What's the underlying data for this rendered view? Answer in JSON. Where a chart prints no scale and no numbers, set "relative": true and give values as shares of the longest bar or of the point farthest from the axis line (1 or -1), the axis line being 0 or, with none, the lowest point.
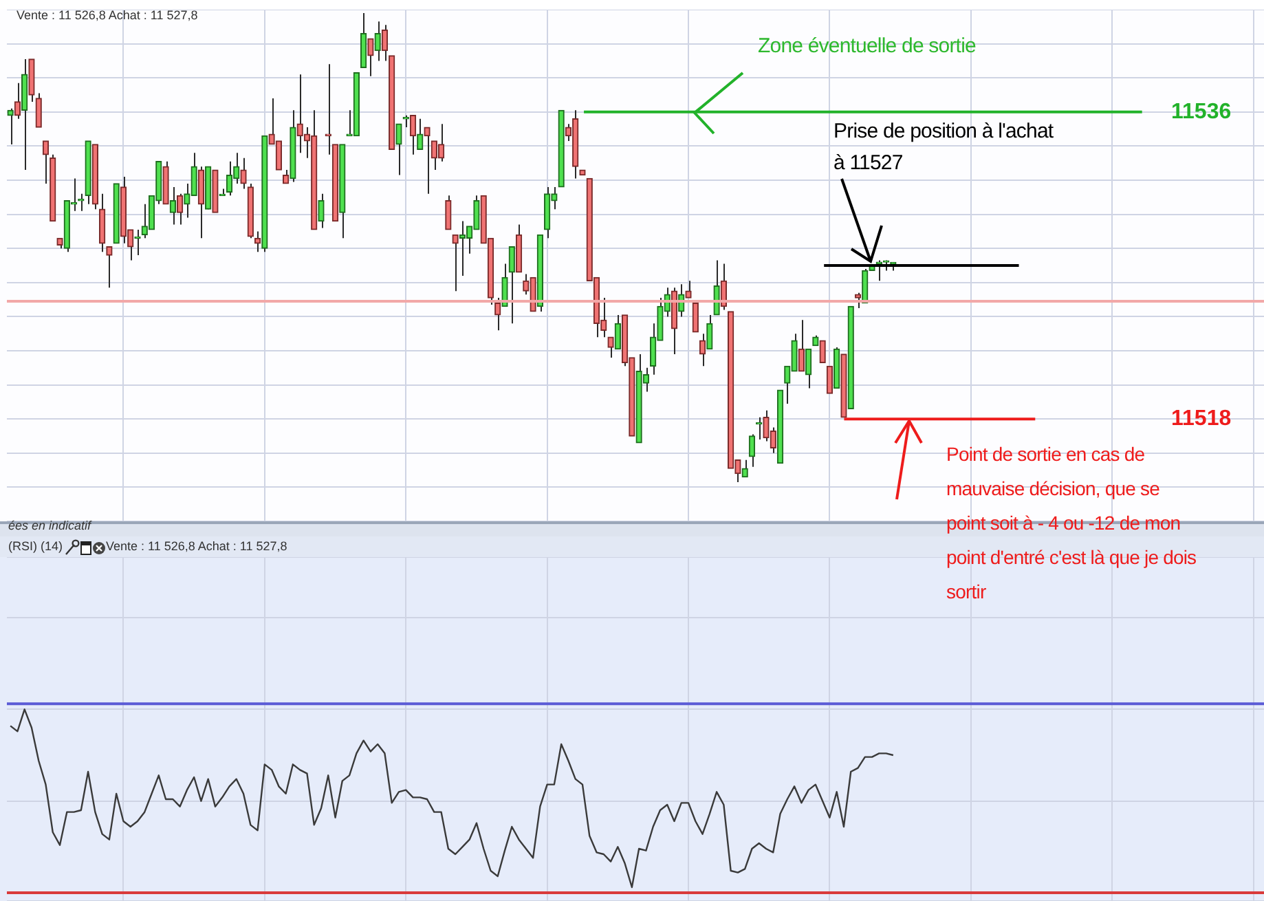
{
  "chart_data": [
    {
      "type": "candlestick",
      "categories": [
        null,
        null,
        null,
        null,
        null,
        null,
        null,
        null,
        null,
        null,
        null,
        null,
        null,
        null,
        null,
        null,
        null,
        null,
        null,
        null,
        null,
        null,
        null,
        null,
        null,
        null,
        null,
        null,
        null,
        null,
        null,
        null,
        null,
        null,
        null,
        null,
        null,
        null,
        null,
        null,
        null,
        null,
        null,
        null,
        null,
        null,
        null,
        null,
        null,
        null,
        null,
        null,
        null,
        null,
        null,
        null,
        null,
        null,
        null,
        null,
        null,
        null,
        null,
        null,
        null,
        null,
        null,
        null,
        null,
        null,
        null,
        null,
        null,
        null,
        null,
        null,
        null,
        null,
        null,
        null,
        null,
        null,
        null,
        null,
        null,
        null,
        null,
        null,
        null,
        null,
        null,
        null,
        null,
        null,
        null,
        null,
        null,
        null,
        null,
        null,
        null,
        null,
        null,
        null,
        null,
        null,
        null,
        null,
        null,
        null,
        null,
        null,
        null,
        null,
        null,
        null,
        null,
        null,
        null,
        null,
        null,
        null,
        null,
        null,
        null,
        null,
        null,
        null,
        null,
        null,
        null,
        null,
        null,
        null,
        null,
        null,
        null,
        null,
        null,
        null,
        null,
        null,
        null,
        null,
        null,
        null,
        null,
        null,
        null,
        null,
        null,
        null,
        null,
        null,
        null,
        null,
        null,
        null,
        null,
        null,
        null,
        null,
        null,
        null,
        null,
        null,
        null,
        null,
        null,
        null,
        null,
        null,
        null,
        null,
        null,
        null,
        null,
        null
      ],
      "ohlc": [
        [
          11535.8,
          11536.2,
          11534.1,
          11536.1
        ],
        [
          11536.6,
          11537.7,
          11535.6,
          11535.8
        ],
        [
          11536.1,
          11539.1,
          11532.6,
          11538.2
        ],
        [
          11539.1,
          11539.1,
          11536.6,
          11537.0
        ],
        [
          11536.8,
          11537.1,
          11535.1,
          11535.1
        ],
        [
          11534.3,
          11534.3,
          11531.8,
          11533.5
        ],
        [
          11533.3,
          11533.5,
          11529.6,
          11529.6
        ],
        [
          11528.6,
          11528.6,
          11528.0,
          11528.2
        ],
        [
          11528.0,
          11530.8,
          11527.8,
          11530.8
        ],
        [
          11530.6,
          11532.1,
          11530.2,
          11530.6
        ],
        [
          11530.8,
          11531.2,
          11530.2,
          11530.8
        ],
        [
          11531.1,
          11534.3,
          11530.6,
          11534.3
        ],
        [
          11534.1,
          11534.1,
          11530.3,
          11530.6
        ],
        [
          11530.3,
          11531.2,
          11527.8,
          11528.3
        ],
        [
          11528.1,
          11528.1,
          11525.7,
          11527.6
        ],
        [
          11528.3,
          11531.8,
          11528.3,
          11531.8
        ],
        [
          11531.6,
          11532.2,
          11528.3,
          11528.7
        ],
        [
          11529.1,
          11529.1,
          11527.3,
          11528.1
        ],
        [
          11528.6,
          11529.1,
          11527.6,
          11528.6
        ],
        [
          11528.8,
          11530.6,
          11528.6,
          11529.3
        ],
        [
          11529.1,
          11531.1,
          11529.1,
          11531.1
        ],
        [
          11530.8,
          11533.1,
          11530.6,
          11533.1
        ],
        [
          11532.8,
          11533.1,
          11530.6,
          11530.6
        ],
        [
          11530.1,
          11531.6,
          11529.4,
          11530.8
        ],
        [
          11531.1,
          11531.2,
          11529.4,
          11530.1
        ],
        [
          11530.6,
          11531.8,
          11529.8,
          11531.2
        ],
        [
          11531.1,
          11533.6,
          11531.1,
          11532.8
        ],
        [
          11532.6,
          11532.8,
          11528.6,
          11530.6
        ],
        [
          11530.3,
          11532.8,
          11530.3,
          11532.8
        ],
        [
          11532.6,
          11532.6,
          11530.1,
          11530.1
        ],
        [
          11531.1,
          11531.5,
          11531.1,
          11531.1
        ],
        [
          11531.3,
          11533.1,
          11531.1,
          11532.3
        ],
        [
          11532.1,
          11533.6,
          11531.8,
          11532.8
        ],
        [
          11532.6,
          11533.3,
          11531.5,
          11531.8
        ],
        [
          11531.6,
          11531.8,
          11528.6,
          11528.7
        ],
        [
          11528.6,
          11529.0,
          11527.8,
          11528.3
        ],
        [
          11528.0,
          11534.6,
          11527.8,
          11534.6
        ],
        [
          11534.7,
          11536.8,
          11534.1,
          11534.1
        ],
        [
          11534.3,
          11534.3,
          11532.6,
          11532.6
        ],
        [
          11532.3,
          11532.6,
          11531.8,
          11531.8
        ],
        [
          11532.1,
          11536.1,
          11531.9,
          11535.1
        ],
        [
          11535.3,
          11538.2,
          11533.6,
          11534.6
        ],
        [
          11534.7,
          11535.1,
          11533.3,
          11534.3
        ],
        [
          11534.6,
          11536.1,
          11529.1,
          11529.1
        ],
        [
          11529.6,
          11531.2,
          11529.2,
          11530.8
        ],
        [
          11534.7,
          11538.8,
          11533.5,
          11534.6
        ],
        [
          11534.1,
          11534.1,
          11529.6,
          11529.6
        ],
        [
          11530.1,
          11534.1,
          11528.6,
          11534.1
        ],
        [
          11534.6,
          11536.1,
          11534.6,
          11534.7
        ],
        [
          11534.6,
          11538.3,
          11534.6,
          11538.3
        ],
        [
          11538.6,
          11541.8,
          11538.6,
          11540.6
        ],
        [
          11540.3,
          11540.3,
          11538.1,
          11539.3
        ],
        [
          11539.6,
          11541.3,
          11539.0,
          11540.6
        ],
        [
          11540.8,
          11541.1,
          11539.0,
          11539.6
        ],
        [
          11539.3,
          11539.3,
          11533.8,
          11533.8
        ],
        [
          11534.1,
          11535.3,
          11532.3,
          11535.3
        ],
        [
          11535.6,
          11535.8,
          11535.1,
          11535.6
        ],
        [
          11535.8,
          11535.8,
          11533.5,
          11534.6
        ],
        [
          11533.8,
          11535.6,
          11533.8,
          11534.7
        ],
        [
          11535.1,
          11535.1,
          11531.2,
          11534.6
        ],
        [
          11534.3,
          11534.3,
          11532.6,
          11533.3
        ],
        [
          11534.1,
          11535.3,
          11533.1,
          11533.3
        ],
        [
          11530.8,
          11531.1,
          11529.1,
          11529.1
        ],
        [
          11528.8,
          11528.8,
          11525.5,
          11528.3
        ],
        [
          11528.6,
          11529.6,
          11526.4,
          11528.8
        ],
        [
          11528.6,
          11529.3,
          11527.7,
          11529.3
        ],
        [
          11529.1,
          11531.1,
          11529.1,
          11530.8
        ],
        [
          11531.1,
          11531.1,
          11528.3,
          11528.3
        ],
        [
          11528.6,
          11528.6,
          11524.7,
          11525.1
        ],
        [
          11524.8,
          11525.1,
          11523.2,
          11524.1
        ],
        [
          11524.6,
          11527.1,
          11524.6,
          11526.3
        ],
        [
          11526.6,
          11528.1,
          11523.6,
          11528.1
        ],
        [
          11528.8,
          11529.4,
          11526.6,
          11526.6
        ],
        [
          11526.1,
          11526.5,
          11525.3,
          11525.5
        ],
        [
          11526.3,
          11526.3,
          11524.3,
          11524.3
        ],
        [
          11524.6,
          11528.8,
          11524.3,
          11528.8
        ],
        [
          11529.1,
          11531.6,
          11528.6,
          11531.2
        ],
        [
          11530.8,
          11531.6,
          11530.3,
          11531.2
        ],
        [
          11531.6,
          11536.1,
          11531.6,
          11536.1
        ],
        [
          11535.1,
          11535.3,
          11534.3,
          11534.6
        ],
        [
          11535.6,
          11536.1,
          11532.1,
          11532.8
        ],
        [
          11532.6,
          11532.6,
          11532.3,
          11532.3
        ],
        [
          11532.1,
          11532.1,
          11526.1,
          11526.1
        ],
        [
          11526.3,
          11526.3,
          11522.8,
          11523.6
        ],
        [
          11523.8,
          11525.1,
          11522.8,
          11523.2
        ],
        [
          11522.8,
          11522.8,
          11521.6,
          11522.2
        ],
        [
          11522.1,
          11524.1,
          11522.1,
          11523.6
        ],
        [
          11524.1,
          11524.1,
          11521.1,
          11521.3
        ],
        [
          11521.6,
          11521.6,
          11517.0,
          11517.0
        ],
        [
          11516.6,
          11521.8,
          11516.6,
          11520.8
        ],
        [
          11520.1,
          11521.0,
          11519.6,
          11520.6
        ],
        [
          11521.1,
          11523.6,
          11520.6,
          11522.8
        ],
        [
          11522.6,
          11525.1,
          11522.6,
          11524.6
        ],
        [
          11524.3,
          11525.7,
          11524.0,
          11525.3
        ],
        [
          11525.5,
          11525.7,
          11521.8,
          11523.3
        ],
        [
          11524.3,
          11525.9,
          11524.0,
          11525.3
        ],
        [
          11525.5,
          11526.1,
          11525.1,
          11525.1
        ],
        [
          11524.8,
          11524.8,
          11523.1,
          11523.1
        ],
        [
          11522.6,
          11523.0,
          11521.1,
          11521.8
        ],
        [
          11522.1,
          11524.1,
          11522.1,
          11523.6
        ],
        [
          11524.1,
          11527.3,
          11524.1,
          11525.8
        ],
        [
          11526.1,
          11527.1,
          11524.4,
          11524.6
        ],
        [
          11524.3,
          11524.3,
          11515.1,
          11515.1
        ],
        [
          11515.6,
          11515.6,
          11514.3,
          11514.8
        ],
        [
          11514.6,
          11515.6,
          11514.6,
          11515.1
        ],
        [
          11515.8,
          11517.1,
          11515.2,
          11517.0
        ],
        [
          11517.7,
          11518.1,
          11516.8,
          11517.7
        ],
        [
          11518.1,
          11518.5,
          11516.7,
          11516.9
        ],
        [
          11517.3,
          11517.5,
          11516.0,
          11516.3
        ],
        [
          11515.4,
          11519.7,
          11515.4,
          11519.7
        ],
        [
          11520.1,
          11521.1,
          11518.9,
          11521.1
        ],
        [
          11520.8,
          11523.0,
          11520.8,
          11522.6
        ],
        [
          11522.1,
          11523.8,
          11520.8,
          11520.8
        ],
        [
          11520.6,
          11522.1,
          11519.8,
          11522.1
        ],
        [
          11522.3,
          11522.9,
          11522.3,
          11522.8
        ],
        [
          11522.6,
          11522.6,
          11521.3,
          11521.3
        ],
        [
          11521.1,
          11521.1,
          11519.5,
          11519.5
        ],
        [
          11519.8,
          11522.2,
          11519.8,
          11522.1
        ],
        [
          11521.8,
          11521.8,
          11518.1,
          11518.1
        ],
        [
          11518.6,
          11524.6,
          11518.6,
          11524.6
        ],
        [
          11525.3,
          11525.4,
          11524.5,
          11525.1
        ],
        [
          11524.8,
          11526.8,
          11524.8,
          11526.7
        ],
        [
          11526.7,
          11527.0,
          11526.7,
          11527.0
        ],
        [
          11527.1,
          11527.3,
          11526.1,
          11527.2
        ],
        [
          11527.2,
          11527.3,
          11526.7,
          11527.2
        ],
        [
          11527.1,
          11527.2,
          11526.7,
          11527.1
        ],
        null,
        null,
        null,
        null,
        null,
        null,
        null,
        null,
        null,
        null,
        null,
        null,
        null,
        null,
        null,
        null,
        null,
        null,
        null,
        null,
        null,
        null,
        null,
        null,
        null,
        null,
        null,
        null,
        null,
        null,
        null,
        null,
        null,
        null,
        null,
        null,
        null,
        null,
        null,
        null,
        null,
        null,
        null,
        null,
        null,
        null,
        null,
        null,
        null,
        null,
        null,
        null
      ],
      "ylim": [
        11512,
        11542
      ],
      "yticks": [
        {
          "value": 11512,
          "label": null
        },
        {
          "value": 11514,
          "label": null
        },
        {
          "value": 11516,
          "label": null
        },
        11518,
        {
          "value": 11520,
          "label": null
        },
        {
          "value": 11522,
          "label": null
        },
        {
          "value": 11524,
          "label": null
        },
        {
          "value": 11526,
          "label": null
        },
        {
          "value": 11528,
          "label": null
        },
        {
          "value": 11530,
          "label": null
        },
        {
          "value": 11532,
          "label": null
        },
        {
          "value": 11534,
          "label": null
        },
        11536,
        {
          "value": 11538,
          "label": null
        },
        {
          "value": 11540,
          "label": null
        },
        {
          "value": 11542,
          "label": null
        }
      ],
      "grid": true,
      "ref_lines": [
        {
          "axis": "y",
          "value": 11524.9,
          "color": "#f2a8a8"
        },
        {
          "axis": "y",
          "value": 11536,
          "color": "#22b22a"
        },
        {
          "axis": "y",
          "value": 11527,
          "color": "#000000"
        },
        {
          "axis": "y",
          "value": 11518,
          "color": "#ee1c1c"
        }
      ],
      "annotations": [
        "Vente : 11 526,8 Achat : 11 527,8",
        "ées en indicatif",
        "Zone éventuelle de sortie",
        "Prise de position à l'achat",
        "à 11527",
        "Point de sortie en cas de mauvaise décision, que se point soit à - 4 ou -12 de mon point d'entré c'est là que je dois sortir"
      ]
    },
    {
      "type": "line",
      "categories": [
        null,
        null,
        null,
        null,
        null,
        null,
        null,
        null,
        null,
        null,
        null,
        null,
        null,
        null,
        null,
        null,
        null,
        null,
        null,
        null,
        null,
        null,
        null,
        null,
        null,
        null,
        null,
        null,
        null,
        null,
        null,
        null,
        null,
        null,
        null,
        null,
        null,
        null,
        null,
        null,
        null,
        null,
        null,
        null,
        null,
        null,
        null,
        null,
        null,
        null,
        null,
        null,
        null,
        null,
        null,
        null,
        null,
        null,
        null,
        null,
        null,
        null,
        null,
        null,
        null,
        null,
        null,
        null,
        null,
        null,
        null,
        null,
        null,
        null,
        null,
        null,
        null,
        null,
        null,
        null,
        null,
        null,
        null,
        null,
        null,
        null,
        null,
        null,
        null,
        null,
        null,
        null,
        null,
        null,
        null,
        null,
        null,
        null,
        null,
        null,
        null,
        null,
        null,
        null,
        null,
        null,
        null,
        null,
        null,
        null,
        null,
        null,
        null,
        null,
        null,
        null,
        null,
        null,
        null,
        null,
        null,
        null,
        null,
        null,
        null,
        null,
        null,
        null,
        null,
        null,
        null,
        null,
        null,
        null,
        null,
        null,
        null,
        null,
        null,
        null,
        null,
        null,
        null,
        null,
        null,
        null,
        null,
        null,
        null,
        null,
        null,
        null,
        null,
        null,
        null,
        null,
        null,
        null,
        null,
        null,
        null,
        null,
        null,
        null,
        null,
        null,
        null,
        null,
        null,
        null,
        null,
        null,
        null,
        null,
        null,
        null,
        null,
        null
      ],
      "series": [
        {
          "color": "#3a3a3a",
          "values": [
            0.91,
            0.88,
            1.0,
            0.9,
            0.72,
            0.59,
            0.33,
            0.26,
            0.44,
            0.44,
            0.45,
            0.66,
            0.44,
            0.32,
            0.29,
            0.54,
            0.39,
            0.36,
            0.39,
            0.44,
            0.54,
            0.64,
            0.51,
            0.51,
            0.47,
            0.56,
            0.63,
            0.5,
            0.62,
            0.47,
            0.52,
            0.58,
            0.62,
            0.54,
            0.37,
            0.34,
            0.7,
            0.67,
            0.58,
            0.54,
            0.7,
            0.67,
            0.65,
            0.37,
            0.46,
            0.64,
            0.41,
            0.61,
            0.64,
            0.76,
            0.83,
            0.77,
            0.81,
            0.76,
            0.49,
            0.55,
            0.56,
            0.52,
            0.52,
            0.51,
            0.44,
            0.44,
            0.24,
            0.21,
            0.25,
            0.29,
            0.38,
            0.24,
            0.12,
            0.09,
            0.23,
            0.36,
            0.29,
            0.24,
            0.19,
            0.47,
            0.59,
            0.59,
            0.81,
            0.72,
            0.62,
            0.59,
            0.31,
            0.22,
            0.21,
            0.17,
            0.25,
            0.16,
            0.03,
            0.24,
            0.23,
            0.36,
            0.45,
            0.48,
            0.39,
            0.49,
            0.49,
            0.39,
            0.32,
            0.43,
            0.55,
            0.48,
            0.12,
            0.11,
            0.13,
            0.24,
            0.27,
            0.24,
            0.22,
            0.43,
            0.51,
            0.58,
            0.49,
            0.56,
            0.59,
            0.5,
            0.41,
            0.55,
            0.36,
            0.66,
            0.68,
            0.74,
            0.74,
            0.76,
            0.76,
            0.75,
            null,
            null,
            null,
            null,
            null,
            null,
            null,
            null,
            null,
            null,
            null,
            null,
            null,
            null,
            null,
            null,
            null,
            null,
            null,
            null,
            null,
            null,
            null,
            null,
            null,
            null,
            null,
            null,
            null,
            null,
            null,
            null,
            null,
            null,
            null,
            null,
            null,
            null,
            null,
            null,
            null,
            null,
            null,
            null,
            null,
            null,
            null,
            null,
            null,
            null,
            null,
            null
          ]
        }
      ],
      "relative": true,
      "grid": true,
      "marker": "none",
      "ref_lines": [
        {
          "axis": "y",
          "value": 1.03,
          "color": "#5b5bd6"
        },
        {
          "axis": "y",
          "value": 0,
          "color": "#d93a3a"
        }
      ],
      "annotations": [
        "(RSI) (14)",
        "Vente : 11 526,8 Achat : 11 527,8"
      ]
    }
  ]
}
